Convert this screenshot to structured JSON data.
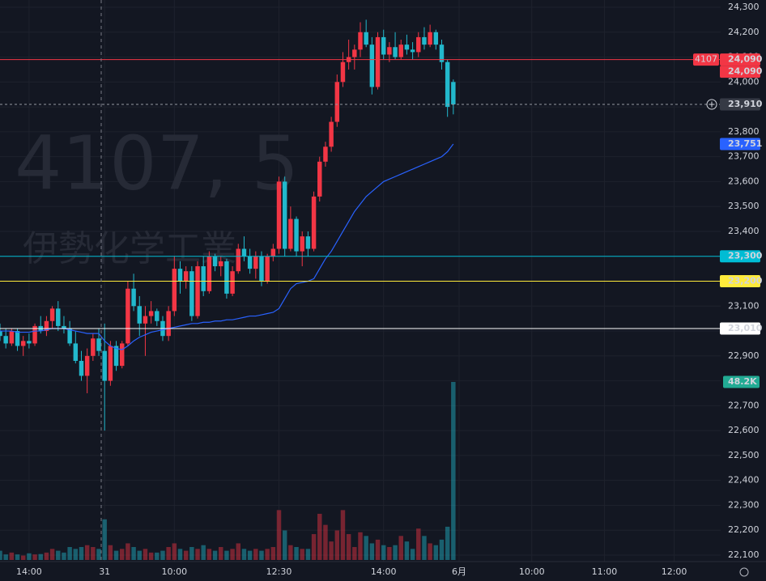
{
  "chart_data": {
    "type": "candlestick",
    "watermark_title": "4107, 5",
    "watermark_subtitle": "伊勢化学工業",
    "up_color": "#f23645",
    "down_color": "#22b8cc",
    "vwap_color": "#2962ff",
    "grid": true,
    "xlim": [
      0,
      124
    ],
    "xticks": [
      {
        "value": 5,
        "label": "14:00"
      },
      {
        "value": 18,
        "label": "31"
      },
      {
        "value": 30,
        "label": "10:00"
      },
      {
        "value": 48,
        "label": "12:30"
      },
      {
        "value": 66,
        "label": "14:00"
      },
      {
        "value": 79,
        "label": "6月"
      },
      {
        "value": 91.5,
        "label": "10:00"
      },
      {
        "value": 104,
        "label": "11:00"
      },
      {
        "value": 116,
        "label": "12:00"
      }
    ],
    "ylim": [
      22100,
      24300
    ],
    "yticks": [
      {
        "value": 22100,
        "label": "22,100"
      },
      {
        "value": 22200,
        "label": "22,200"
      },
      {
        "value": 22300,
        "label": "22,300"
      },
      {
        "value": 22400,
        "label": "22,400"
      },
      {
        "value": 22500,
        "label": "22,500"
      },
      {
        "value": 22600,
        "label": "22,600"
      },
      {
        "value": 22700,
        "label": "22,700"
      },
      {
        "value": 22800,
        "label": "22,800"
      },
      {
        "value": 22900,
        "label": "22,900"
      },
      {
        "value": 23000,
        "label": "23,000"
      },
      {
        "value": 23100,
        "label": "23,100"
      },
      {
        "value": 23200,
        "label": "23,200"
      },
      {
        "value": 23300,
        "label": "23,300"
      },
      {
        "value": 23400,
        "label": "23,400"
      },
      {
        "value": 23500,
        "label": "23,500"
      },
      {
        "value": 23600,
        "label": "23,600"
      },
      {
        "value": 23700,
        "label": "23,700"
      },
      {
        "value": 23800,
        "label": "23,800"
      },
      {
        "value": 23900,
        "label": "23,900"
      },
      {
        "value": 24000,
        "label": "24,000"
      },
      {
        "value": 24100,
        "label": "24,100"
      },
      {
        "value": 24200,
        "label": "24,200"
      },
      {
        "value": 24300,
        "label": "24,300"
      }
    ],
    "x": [
      0,
      1,
      2,
      3,
      4,
      5,
      6,
      7,
      8,
      9,
      10,
      11,
      12,
      13,
      14,
      15,
      16,
      17,
      18,
      19,
      20,
      21,
      22,
      23,
      24,
      25,
      26,
      27,
      28,
      29,
      30,
      31,
      32,
      33,
      34,
      35,
      36,
      37,
      38,
      39,
      40,
      41,
      42,
      43,
      44,
      45,
      46,
      47,
      48,
      49,
      50,
      51,
      52,
      53,
      54,
      55,
      56,
      57,
      58,
      59,
      60,
      61,
      62,
      63,
      64,
      65,
      66,
      67,
      68,
      69,
      70,
      71,
      72,
      73,
      74,
      75,
      76,
      77,
      78
    ],
    "candles": [
      [
        23000,
        23030,
        22960,
        22980
      ],
      [
        22980,
        23010,
        22930,
        22950
      ],
      [
        22950,
        23010,
        22940,
        23000
      ],
      [
        23000,
        23010,
        22920,
        22940
      ],
      [
        22940,
        22980,
        22900,
        22960
      ],
      [
        22960,
        22990,
        22930,
        22950
      ],
      [
        22950,
        23030,
        22940,
        23020
      ],
      [
        23020,
        23060,
        22990,
        23000
      ],
      [
        23000,
        23060,
        22980,
        23040
      ],
      [
        23040,
        23100,
        23010,
        23090
      ],
      [
        23090,
        23120,
        23000,
        23020
      ],
      [
        23020,
        23060,
        22990,
        23010
      ],
      [
        23010,
        23040,
        22940,
        22950
      ],
      [
        22950,
        23000,
        22870,
        22880
      ],
      [
        22880,
        22920,
        22800,
        22820
      ],
      [
        22820,
        22930,
        22750,
        22900
      ],
      [
        22900,
        22990,
        22880,
        22970
      ],
      [
        22970,
        23010,
        22900,
        22920
      ],
      [
        22920,
        23030,
        22600,
        22800
      ],
      [
        22800,
        22960,
        22780,
        22940
      ],
      [
        22940,
        22960,
        22840,
        22860
      ],
      [
        22860,
        22960,
        22850,
        22950
      ],
      [
        22950,
        23200,
        22940,
        23170
      ],
      [
        23170,
        23230,
        23080,
        23100
      ],
      [
        23100,
        23140,
        22980,
        23030
      ],
      [
        23030,
        23100,
        22900,
        23060
      ],
      [
        23060,
        23120,
        23030,
        23080
      ],
      [
        23080,
        23090,
        23020,
        23040
      ],
      [
        23040,
        23060,
        22960,
        22980
      ],
      [
        22980,
        23100,
        22960,
        23080
      ],
      [
        23080,
        23300,
        23060,
        23250
      ],
      [
        23250,
        23280,
        23150,
        23200
      ],
      [
        23200,
        23260,
        23170,
        23240
      ],
      [
        23240,
        23260,
        23040,
        23060
      ],
      [
        23060,
        23280,
        23050,
        23260
      ],
      [
        23260,
        23300,
        23140,
        23160
      ],
      [
        23160,
        23320,
        23150,
        23300
      ],
      [
        23300,
        23310,
        23240,
        23260
      ],
      [
        23260,
        23300,
        23220,
        23280
      ],
      [
        23280,
        23290,
        23130,
        23150
      ],
      [
        23150,
        23260,
        23140,
        23240
      ],
      [
        23240,
        23350,
        23230,
        23330
      ],
      [
        23330,
        23380,
        23280,
        23300
      ],
      [
        23300,
        23330,
        23230,
        23250
      ],
      [
        23250,
        23320,
        23210,
        23300
      ],
      [
        23300,
        23320,
        23180,
        23200
      ],
      [
        23200,
        23310,
        23190,
        23300
      ],
      [
        23300,
        23350,
        23280,
        23330
      ],
      [
        23330,
        23620,
        23310,
        23600
      ],
      [
        23600,
        23620,
        23300,
        23330
      ],
      [
        23330,
        23500,
        23320,
        23450
      ],
      [
        23450,
        23460,
        23300,
        23320
      ],
      [
        23320,
        23400,
        23260,
        23380
      ],
      [
        23380,
        23400,
        23300,
        23330
      ],
      [
        23330,
        23560,
        23320,
        23540
      ],
      [
        23540,
        23700,
        23520,
        23680
      ],
      [
        23680,
        23760,
        23660,
        23740
      ],
      [
        23740,
        23860,
        23720,
        23840
      ],
      [
        23840,
        24030,
        23820,
        24000
      ],
      [
        24000,
        24120,
        23980,
        24080
      ],
      [
        24080,
        24170,
        24050,
        24100
      ],
      [
        24100,
        24150,
        24050,
        24130
      ],
      [
        24130,
        24240,
        24100,
        24200
      ],
      [
        24200,
        24250,
        24140,
        24150
      ],
      [
        24150,
        24180,
        23950,
        23980
      ],
      [
        23980,
        24200,
        23970,
        24180
      ],
      [
        24180,
        24210,
        24090,
        24110
      ],
      [
        24110,
        24160,
        24080,
        24140
      ],
      [
        24140,
        24200,
        24090,
        24100
      ],
      [
        24100,
        24170,
        24090,
        24150
      ],
      [
        24150,
        24190,
        24110,
        24130
      ],
      [
        24130,
        24160,
        24090,
        24120
      ],
      [
        24120,
        24200,
        24100,
        24180
      ],
      [
        24180,
        24220,
        24130,
        24150
      ],
      [
        24150,
        24230,
        24140,
        24200
      ],
      [
        24200,
        24210,
        24130,
        24150
      ],
      [
        24150,
        24170,
        24050,
        24080
      ],
      [
        24080,
        24090,
        23860,
        23900
      ],
      [
        24000,
        24010,
        23870,
        23910
      ]
    ],
    "volumes": [
      2500,
      1500,
      2000,
      1500,
      1200,
      1800,
      1500,
      1600,
      2000,
      3000,
      2500,
      2000,
      3500,
      3000,
      3500,
      4000,
      3500,
      3000,
      11000,
      4000,
      2500,
      3000,
      4500,
      3500,
      2500,
      3000,
      2000,
      2000,
      2500,
      3500,
      4500,
      3000,
      2500,
      3500,
      3000,
      4000,
      3000,
      2500,
      3500,
      2500,
      3000,
      4500,
      3000,
      2500,
      3000,
      2500,
      3000,
      3500,
      13500,
      8000,
      4000,
      3500,
      3000,
      3000,
      7000,
      12500,
      9500,
      5000,
      8000,
      13500,
      7000,
      3500,
      7500,
      6500,
      4500,
      5500,
      4000,
      3500,
      4000,
      6500,
      5000,
      3000,
      8500,
      6500,
      4500,
      4000,
      5500,
      9000,
      48200
    ],
    "volume_label": {
      "value": 48200,
      "label": "48.2K",
      "color": "#22ab94"
    },
    "vwap": [
      23000,
      23000,
      23000,
      22995,
      22995,
      22995,
      23000,
      23000,
      23005,
      23010,
      23010,
      23010,
      23005,
      23000,
      22995,
      22990,
      22990,
      22990,
      22960,
      22940,
      22930,
      22925,
      22940,
      22960,
      22975,
      22985,
      22995,
      23000,
      23005,
      23010,
      23015,
      23020,
      23025,
      23030,
      23030,
      23035,
      23035,
      23040,
      23040,
      23045,
      23045,
      23050,
      23055,
      23060,
      23060,
      23065,
      23070,
      23075,
      23090,
      23130,
      23170,
      23190,
      23195,
      23200,
      23210,
      23250,
      23290,
      23320,
      23360,
      23400,
      23440,
      23480,
      23510,
      23540,
      23560,
      23580,
      23600,
      23610,
      23620,
      23630,
      23640,
      23650,
      23660,
      23670,
      23680,
      23690,
      23700,
      23720,
      23751
    ],
    "price_labels": [
      {
        "value": 24090,
        "label": "24,090",
        "tag": "4107",
        "color": "#f23645",
        "text_color": "#ffffff",
        "line": "solid"
      },
      {
        "value": 24090,
        "label": "24,090",
        "color": "#f23645",
        "text_color": "#ffffff",
        "line": "none"
      },
      {
        "value": 23910,
        "label": "23,910",
        "color": "#363a45",
        "text_color": "#ffffff",
        "line": "dashed"
      },
      {
        "value": 23751,
        "label": "23,751",
        "color": "#2962ff",
        "text_color": "#ffffff",
        "line": "none"
      },
      {
        "value": 23300,
        "label": "23,300",
        "color": "#00bcd4",
        "text_color": "#131722",
        "line": "solid"
      },
      {
        "value": 23200,
        "label": "23,200",
        "color": "#ffeb3b",
        "text_color": "#131722",
        "line": "solid"
      },
      {
        "value": 23010,
        "label": "23,010",
        "color": "#ffffff",
        "text_color": "#131722",
        "line": "solid"
      }
    ]
  }
}
